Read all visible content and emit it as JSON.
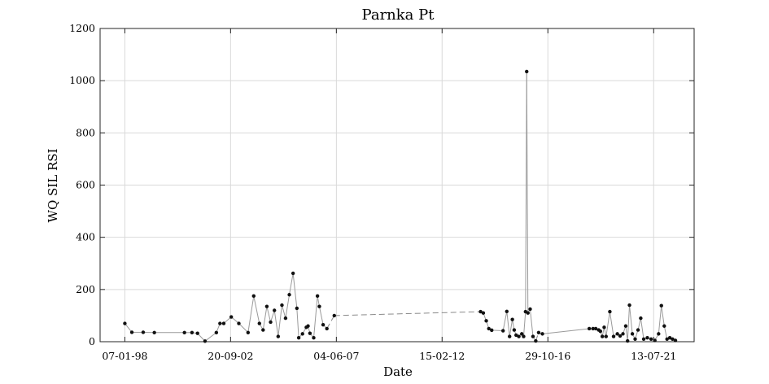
{
  "chart_data": {
    "type": "line",
    "title": "Parnka Pt",
    "xlabel": "Date",
    "ylabel": "WQ SIL RSI",
    "grid": true,
    "xlim": [
      "1996-12-01",
      "2023-05-01"
    ],
    "ylim": [
      0,
      1200
    ],
    "yticks": [
      0,
      200,
      400,
      600,
      800,
      1000,
      1200
    ],
    "xticks": [
      {
        "date": "1998-01-07",
        "label": "07-01-98"
      },
      {
        "date": "2002-09-20",
        "label": "20-09-02"
      },
      {
        "date": "2007-06-04",
        "label": "04-06-07"
      },
      {
        "date": "2012-02-15",
        "label": "15-02-12"
      },
      {
        "date": "2016-10-29",
        "label": "29-10-16"
      },
      {
        "date": "2021-07-13",
        "label": "13-07-21"
      }
    ],
    "series": [
      {
        "line_color": "#9a9a9a",
        "marker_color": "#111111",
        "points": [
          [
            "1998-01-07",
            70
          ],
          [
            "1998-05-01",
            36
          ],
          [
            "1998-11-01",
            36
          ],
          [
            "1999-05-01",
            35
          ],
          [
            "2000-09-01",
            35
          ],
          [
            "2001-01-01",
            35
          ],
          [
            "2001-04-01",
            32
          ],
          [
            "2001-08-01",
            2
          ],
          [
            "2002-02-01",
            35
          ],
          [
            "2002-04-01",
            70
          ],
          [
            "2002-06-01",
            70
          ],
          [
            "2002-10-01",
            95
          ],
          [
            "2003-02-01",
            70
          ],
          [
            "2003-07-01",
            35
          ],
          [
            "2003-10-01",
            175
          ],
          [
            "2004-01-01",
            70
          ],
          [
            "2004-03-01",
            45
          ],
          [
            "2004-05-01",
            135
          ],
          [
            "2004-07-01",
            75
          ],
          [
            "2004-09-01",
            120
          ],
          [
            "2004-11-01",
            20
          ],
          [
            "2005-01-01",
            140
          ],
          [
            "2005-03-01",
            90
          ],
          [
            "2005-05-01",
            180
          ],
          [
            "2005-07-01",
            262
          ],
          [
            "2005-09-01",
            128
          ],
          [
            "2005-10-01",
            15
          ],
          [
            "2005-12-01",
            30
          ],
          [
            "2006-02-01",
            55
          ],
          [
            "2006-03-01",
            60
          ],
          [
            "2006-04-01",
            32
          ],
          [
            "2006-06-01",
            15
          ],
          [
            "2006-08-01",
            175
          ],
          [
            "2006-09-01",
            135
          ],
          [
            "2006-11-01",
            65
          ],
          [
            "2007-01-01",
            50
          ],
          [
            "2007-05-01",
            100
          ],
          [
            "2013-11-01",
            115
          ],
          [
            "2013-12-15",
            110
          ],
          [
            "2014-02-01",
            80
          ],
          [
            "2014-03-15",
            50
          ],
          [
            "2014-05-01",
            44
          ],
          [
            "2014-11-01",
            42
          ],
          [
            "2015-01-01",
            116
          ],
          [
            "2015-02-15",
            20
          ],
          [
            "2015-04-01",
            85
          ],
          [
            "2015-05-01",
            45
          ],
          [
            "2015-06-01",
            25
          ],
          [
            "2015-07-15",
            20
          ],
          [
            "2015-09-01",
            30
          ],
          [
            "2015-10-01",
            20
          ],
          [
            "2015-11-01",
            115
          ],
          [
            "2015-11-20",
            1035
          ],
          [
            "2015-12-10",
            110
          ],
          [
            "2016-01-15",
            125
          ],
          [
            "2016-03-01",
            20
          ],
          [
            "2016-04-15",
            3
          ],
          [
            "2016-06-01",
            35
          ],
          [
            "2016-08-01",
            30
          ],
          [
            "2018-09-01",
            50
          ],
          [
            "2018-11-01",
            50
          ],
          [
            "2018-12-15",
            50
          ],
          [
            "2019-02-01",
            45
          ],
          [
            "2019-03-01",
            40
          ],
          [
            "2019-04-01",
            20
          ],
          [
            "2019-05-01",
            55
          ],
          [
            "2019-06-01",
            20
          ],
          [
            "2019-08-01",
            115
          ],
          [
            "2019-10-01",
            20
          ],
          [
            "2019-12-01",
            30
          ],
          [
            "2020-01-15",
            22
          ],
          [
            "2020-03-01",
            30
          ],
          [
            "2020-04-15",
            60
          ],
          [
            "2020-05-15",
            3
          ],
          [
            "2020-06-15",
            140
          ],
          [
            "2020-08-01",
            30
          ],
          [
            "2020-09-15",
            10
          ],
          [
            "2020-11-01",
            45
          ],
          [
            "2020-12-15",
            90
          ],
          [
            "2021-02-01",
            10
          ],
          [
            "2021-04-01",
            15
          ],
          [
            "2021-06-01",
            10
          ],
          [
            "2021-08-01",
            5
          ],
          [
            "2021-10-01",
            30
          ],
          [
            "2021-11-15",
            138
          ],
          [
            "2022-01-01",
            60
          ],
          [
            "2022-02-15",
            10
          ],
          [
            "2022-04-01",
            15
          ],
          [
            "2022-05-15",
            10
          ],
          [
            "2022-07-01",
            5
          ]
        ],
        "dashed_segments_after_index": [
          35,
          36,
          56,
          57
        ]
      }
    ]
  }
}
